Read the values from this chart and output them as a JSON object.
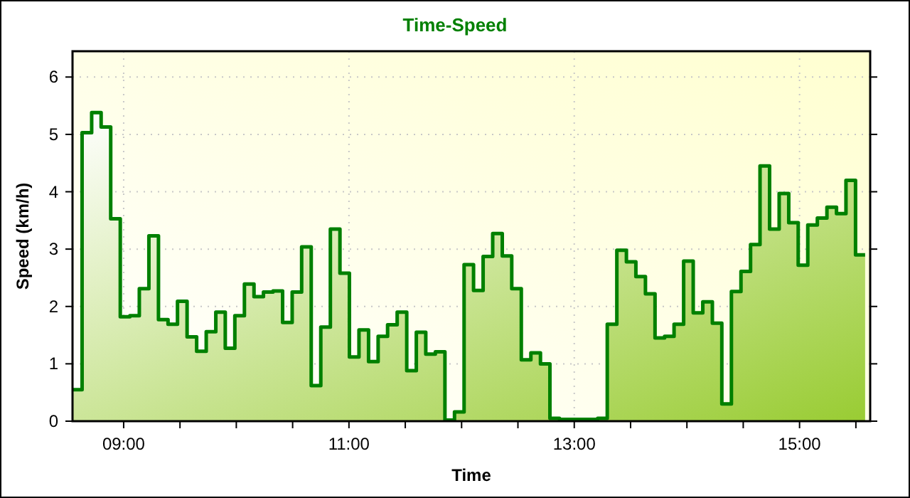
{
  "chart_data": {
    "type": "step",
    "title": "Time-Speed",
    "xlabel": "Time",
    "ylabel": "Speed (km/h)",
    "x": [
      8.546,
      8.631,
      8.716,
      8.8,
      8.885,
      8.97,
      9.055,
      9.139,
      9.224,
      9.309,
      9.394,
      9.478,
      9.563,
      9.648,
      9.733,
      9.818,
      9.902,
      9.987,
      10.072,
      10.157,
      10.241,
      10.326,
      10.411,
      10.496,
      10.58,
      10.665,
      10.75,
      10.835,
      10.92,
      11.004,
      11.089,
      11.174,
      11.259,
      11.343,
      11.428,
      11.513,
      11.598,
      11.682,
      11.767,
      11.852,
      11.937,
      12.022,
      12.106,
      12.191,
      12.276,
      12.361,
      12.445,
      12.53,
      12.615,
      12.7,
      12.784,
      12.869,
      12.954,
      13.039,
      13.124,
      13.208,
      13.293,
      13.378,
      13.463,
      13.547,
      13.632,
      13.717,
      13.802,
      13.886,
      13.971,
      14.056,
      14.141,
      14.226,
      14.31,
      14.395,
      14.48,
      14.565,
      14.649,
      14.734,
      14.819,
      14.904,
      14.988,
      15.073,
      15.158,
      15.243,
      15.328,
      15.412,
      15.497,
      15.582
    ],
    "series": [
      {
        "color": "#008000",
        "values": [
          0.55,
          5.03,
          5.38,
          5.13,
          3.53,
          1.82,
          1.84,
          2.31,
          3.23,
          1.77,
          1.69,
          2.09,
          1.47,
          1.22,
          1.56,
          1.9,
          1.27,
          1.84,
          2.39,
          2.17,
          2.25,
          2.27,
          1.72,
          2.25,
          3.04,
          0.62,
          1.64,
          3.35,
          2.58,
          1.12,
          1.59,
          1.04,
          1.48,
          1.68,
          1.9,
          0.88,
          1.55,
          1.17,
          1.21,
          0.02,
          0.16,
          2.73,
          2.28,
          2.87,
          3.27,
          2.88,
          2.31,
          1.07,
          1.19,
          1.0,
          0.05,
          0.03,
          0.03,
          0.03,
          0.03,
          0.05,
          1.69,
          2.98,
          2.78,
          2.52,
          2.22,
          1.45,
          1.48,
          1.69,
          2.79,
          1.89,
          2.08,
          1.71,
          0.3,
          2.26,
          2.61,
          3.08,
          4.45,
          3.35,
          3.97,
          3.46,
          2.72,
          3.42,
          3.54,
          3.73,
          3.62,
          4.2,
          2.9,
          2.9
        ]
      }
    ],
    "xlim": [
      8.546,
      15.627
    ],
    "ylim": [
      0,
      6.45
    ],
    "xticks": [
      {
        "value": 9,
        "label": "09:00"
      },
      {
        "value": 9.5,
        "label": null
      },
      {
        "value": 10,
        "label": null
      },
      {
        "value": 10.5,
        "label": null
      },
      {
        "value": 11,
        "label": "11:00"
      },
      {
        "value": 11.5,
        "label": null
      },
      {
        "value": 12,
        "label": null
      },
      {
        "value": 12.5,
        "label": null
      },
      {
        "value": 13,
        "label": "13:00"
      },
      {
        "value": 13.5,
        "label": null
      },
      {
        "value": 14,
        "label": null
      },
      {
        "value": 14.5,
        "label": null
      },
      {
        "value": 15,
        "label": "15:00"
      },
      {
        "value": 15.5,
        "label": null
      }
    ],
    "yticks": [
      0,
      1,
      2,
      3,
      4,
      5,
      6
    ],
    "grid": true,
    "marker": "none",
    "line_style": "solid"
  }
}
